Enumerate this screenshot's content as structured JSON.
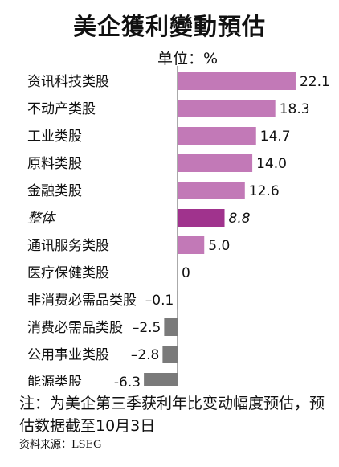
{
  "chart_data": {
    "type": "bar",
    "orientation": "horizontal",
    "title": "美企獲利變動預估",
    "unit_label": "单位：%",
    "categories": [
      "资讯科技类股",
      "不动产类股",
      "工业类股",
      "原料类股",
      "金融类股",
      "整体",
      "通讯服务类股",
      "医疗保健类股",
      "非消费必需品类股",
      "消费必需品类股",
      "公用事业类股",
      "能源类股"
    ],
    "values": [
      22.1,
      18.3,
      14.7,
      14.0,
      12.6,
      8.8,
      5.0,
      0,
      -0.1,
      -2.5,
      -2.8,
      -6.3
    ],
    "value_labels": [
      "22.1",
      "18.3",
      "14.7",
      "14.0",
      "12.6",
      "8.8",
      "5.0",
      "0",
      "–0.1",
      "–2.5",
      "–2.8",
      "-6.3"
    ],
    "highlight_category": "整体",
    "colors": {
      "positive": "#c279b7",
      "highlight": "#a0338d",
      "negative": "#7a7a7a"
    }
  },
  "note": "注：为美企第三季获利年比变动幅度预估，预估数据截至10月3日",
  "source": "资料来源：LSEG"
}
